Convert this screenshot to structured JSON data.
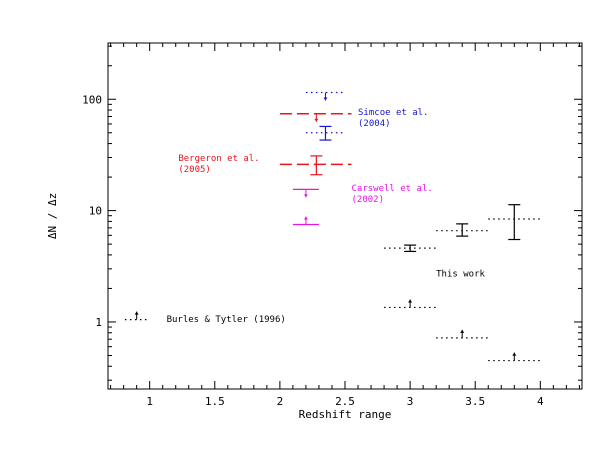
{
  "chart_data": {
    "type": "scatter",
    "xlabel": "Redshift range",
    "ylabel": "ΔN / Δz",
    "xlim": [
      0.68,
      4.32
    ],
    "ylim": [
      0.25,
      320
    ],
    "y_scale": "log",
    "x_ticks": [
      {
        "value": 1,
        "label": "1"
      },
      {
        "value": 1.5,
        "label": "1.5"
      },
      {
        "value": 2,
        "label": "2"
      },
      {
        "value": 2.5,
        "label": "2.5"
      },
      {
        "value": 3,
        "label": "3"
      },
      {
        "value": 3.5,
        "label": "3.5"
      },
      {
        "value": 4,
        "label": "4"
      }
    ],
    "y_ticks": [
      {
        "value": 1,
        "label": "1"
      },
      {
        "value": 10,
        "label": "10"
      },
      {
        "value": 100,
        "label": "100"
      }
    ],
    "grid": false,
    "legend": "none",
    "series": [
      {
        "color": "#000000",
        "points": [
          {
            "x": 0.9,
            "xmin": 0.81,
            "xmax": 1.0,
            "y": 1.05,
            "style": "dotted",
            "limit": "lower"
          },
          {
            "x": 3.0,
            "xmin": 2.8,
            "xmax": 3.2,
            "y": 4.6,
            "yerr_low": 4.3,
            "yerr_high": 4.9,
            "style": "dotted",
            "limit": "none"
          },
          {
            "x": 3.0,
            "xmin": 2.8,
            "xmax": 3.2,
            "y": 1.35,
            "style": "dotted",
            "limit": "lower"
          },
          {
            "x": 3.4,
            "xmin": 3.2,
            "xmax": 3.6,
            "y": 6.6,
            "yerr_low": 5.9,
            "yerr_high": 7.6,
            "style": "dotted",
            "limit": "none"
          },
          {
            "x": 3.4,
            "xmin": 3.2,
            "xmax": 3.6,
            "y": 0.72,
            "style": "dotted",
            "limit": "lower"
          },
          {
            "x": 3.8,
            "xmin": 3.6,
            "xmax": 4.0,
            "y": 8.4,
            "yerr_low": 5.5,
            "yerr_high": 11.3,
            "style": "dotted",
            "limit": "none"
          },
          {
            "x": 3.8,
            "xmin": 3.6,
            "xmax": 4.0,
            "y": 0.45,
            "style": "dotted",
            "limit": "lower"
          }
        ]
      },
      {
        "color": "#e8141e",
        "points": [
          {
            "x": 2.28,
            "xmin": 2.0,
            "xmax": 2.55,
            "y": 74,
            "style": "dashed",
            "limit": "upper"
          },
          {
            "x": 2.28,
            "xmin": 2.0,
            "xmax": 2.55,
            "y": 26,
            "yerr_low": 21,
            "yerr_high": 31,
            "style": "dashed",
            "limit": "none"
          }
        ]
      },
      {
        "color": "#1414d2",
        "points": [
          {
            "x": 2.35,
            "xmin": 2.2,
            "xmax": 2.5,
            "y": 115,
            "style": "dotted",
            "limit": "upper"
          },
          {
            "x": 2.35,
            "xmin": 2.2,
            "xmax": 2.5,
            "y": 50,
            "yerr_low": 43,
            "yerr_high": 57,
            "style": "dotted",
            "limit": "none"
          }
        ]
      },
      {
        "color": "#e614e6",
        "points": [
          {
            "x": 2.2,
            "xmin": 2.1,
            "xmax": 2.3,
            "y": 15.5,
            "style": "solid",
            "limit": "upper"
          },
          {
            "x": 2.2,
            "xmin": 2.1,
            "xmax": 2.3,
            "y": 7.5,
            "style": "solid",
            "limit": "lower"
          }
        ]
      }
    ],
    "annotations": [
      {
        "lines": [
          "Simcoe et al.",
          "(2004)"
        ],
        "color": "#1414d2",
        "x": 2.6,
        "y": 72
      },
      {
        "lines": [
          "Bergeron et al.",
          "(2005)"
        ],
        "color": "#e8141e",
        "x": 1.22,
        "y": 28
      },
      {
        "lines": [
          "Carswell et al.",
          "(2002)"
        ],
        "color": "#e614e6",
        "x": 2.55,
        "y": 15
      },
      {
        "lines": [
          "This work"
        ],
        "color": "#000000",
        "x": 3.2,
        "y": 2.55
      },
      {
        "lines": [
          "Burles & Tytler (1996)"
        ],
        "color": "#000000",
        "x": 1.13,
        "y": 1.0
      }
    ]
  }
}
